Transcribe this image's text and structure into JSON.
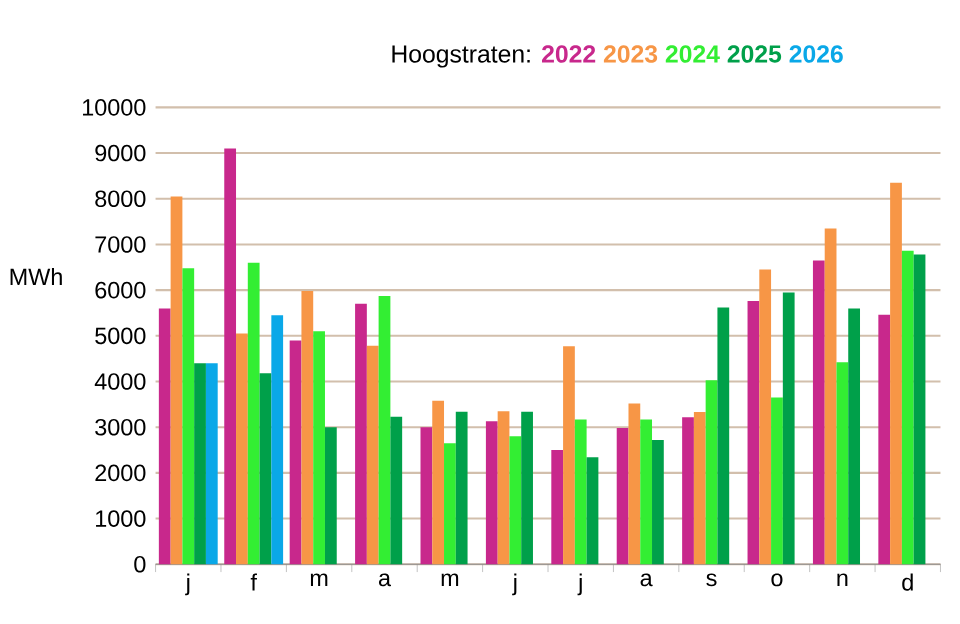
{
  "chart_data": {
    "type": "bar",
    "title": "Hoogstraten:",
    "ylabel": "MWh",
    "categories": [
      "j",
      "f",
      "m",
      "a",
      "m",
      "j",
      "j",
      "a",
      "s",
      "o",
      "n",
      "d"
    ],
    "series": [
      {
        "name": "2022",
        "color": "#c8288c",
        "values": [
          5600,
          9100,
          4900,
          5700,
          3000,
          3130,
          2500,
          2980,
          3220,
          5760,
          6650,
          5460
        ]
      },
      {
        "name": "2023",
        "color": "#f79646",
        "values": [
          8050,
          5050,
          5980,
          4780,
          3580,
          3350,
          4770,
          3520,
          3330,
          6450,
          7350,
          8350
        ]
      },
      {
        "name": "2024",
        "color": "#33ee33",
        "values": [
          6480,
          6600,
          5100,
          5870,
          2650,
          2800,
          3170,
          3170,
          4030,
          3650,
          4420,
          6860
        ]
      },
      {
        "name": "2025",
        "color": "#00a04a",
        "values": [
          4400,
          4180,
          3000,
          3230,
          3340,
          3340,
          2340,
          2720,
          5620,
          5950,
          5600,
          6780
        ]
      },
      {
        "name": "2026",
        "color": "#0aa8e8",
        "values": [
          4400,
          5450,
          null,
          null,
          null,
          null,
          null,
          null,
          null,
          null,
          null,
          null
        ]
      }
    ],
    "ylim": [
      0,
      10000
    ],
    "yticks": [
      0,
      1000,
      2000,
      3000,
      4000,
      5000,
      6000,
      7000,
      8000,
      9000,
      10000
    ],
    "grid": "y",
    "legend": "top"
  }
}
